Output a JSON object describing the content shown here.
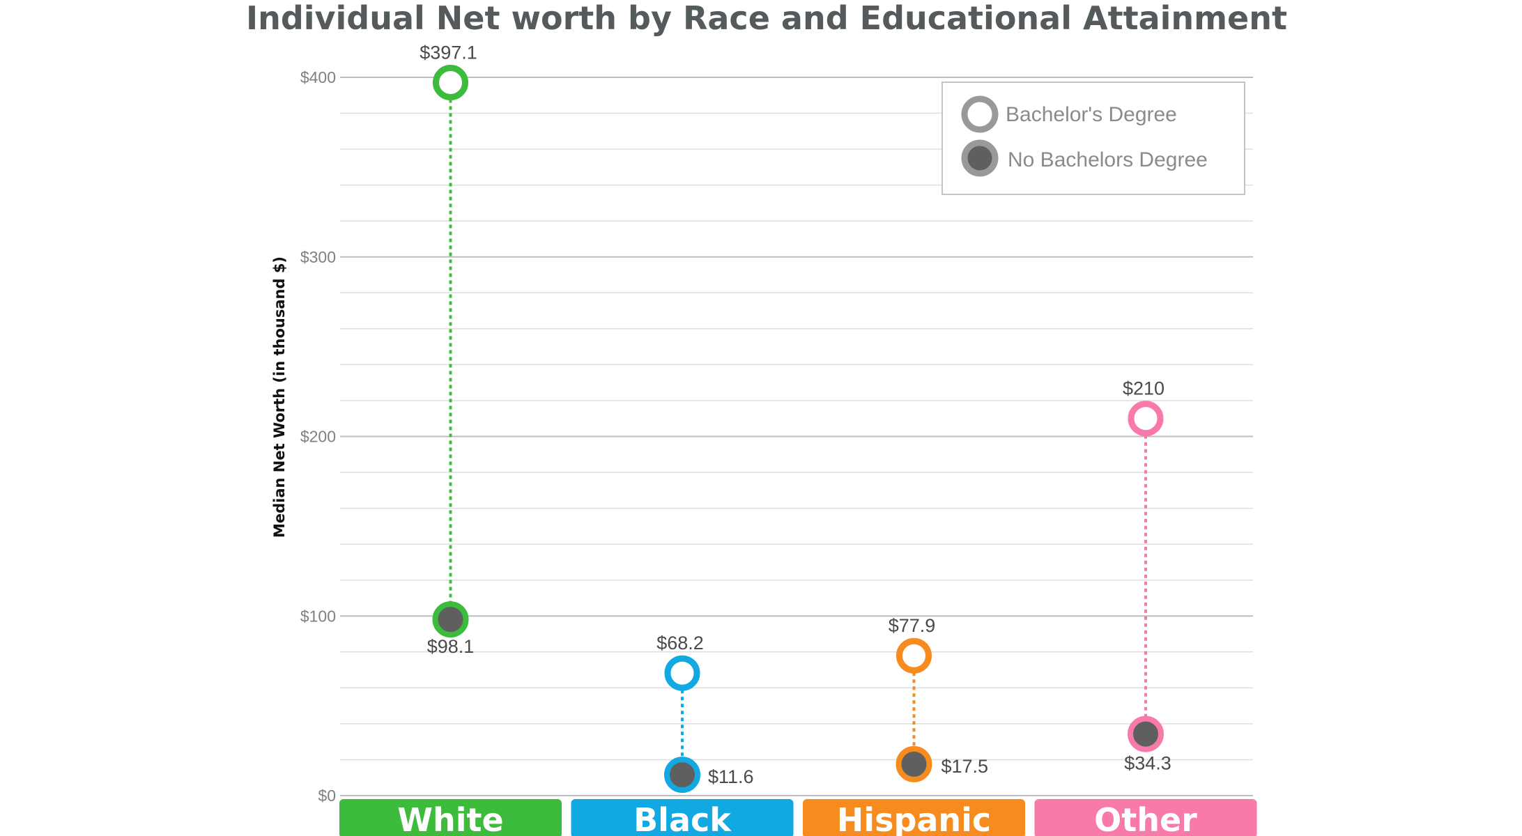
{
  "chart_data": {
    "type": "dumbbell",
    "title": "Individual Net worth by Race and Educational Attainment",
    "xlabel": "",
    "ylabel": "Median Net Worth (in thousand $)",
    "ylim": [
      0,
      400
    ],
    "y_ticks": [
      {
        "value": 0,
        "label": "$0"
      },
      {
        "value": 100,
        "label": "$100"
      },
      {
        "value": 200,
        "label": "$200"
      },
      {
        "value": 300,
        "label": "$300"
      },
      {
        "value": 400,
        "label": "$400"
      }
    ],
    "minor_grid_step": 20,
    "grid": true,
    "legend_position": "top-right",
    "categories": [
      "White",
      "Black",
      "Hispanic",
      "Other"
    ],
    "category_colors": [
      "#3dbb3c",
      "#12a8e1",
      "#f68b1f",
      "#f77aab"
    ],
    "series": [
      {
        "name": "Bachelor's Degree",
        "marker": "hollow-circle",
        "values": [
          397.1,
          68.2,
          77.9,
          210
        ],
        "labels": [
          "$397.1",
          "$68.2",
          "$77.9",
          "$210"
        ]
      },
      {
        "name": "No Bachelors Degree",
        "marker": "filled-circle",
        "values": [
          98.1,
          11.6,
          17.5,
          34.3
        ],
        "labels": [
          "$98.1",
          "$11.6",
          "$17.5",
          "$34.3"
        ]
      }
    ],
    "colors": {
      "legend_marker": "#999999",
      "filled_dot": "#5f5f5f",
      "grid_major": "#bdbdbd",
      "grid_minor": "#dedede"
    }
  }
}
